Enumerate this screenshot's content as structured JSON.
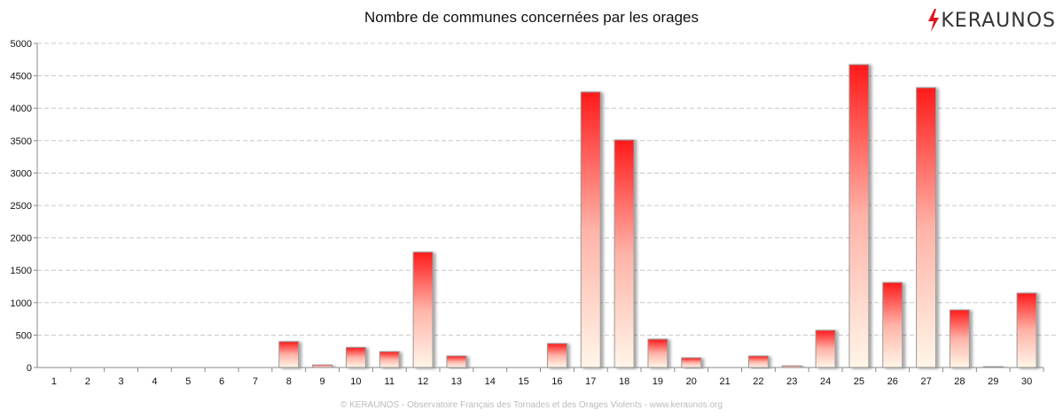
{
  "chart_data": {
    "type": "bar",
    "title": "Nombre de communes concernées par les orages",
    "xlabel": "",
    "ylabel": "",
    "ylim": [
      0,
      5000
    ],
    "yticks": [
      0,
      500,
      1000,
      1500,
      2000,
      2500,
      3000,
      3500,
      4000,
      4500,
      5000
    ],
    "grid": true,
    "categories": [
      "1",
      "2",
      "3",
      "4",
      "5",
      "6",
      "7",
      "8",
      "9",
      "10",
      "11",
      "12",
      "13",
      "14",
      "15",
      "16",
      "17",
      "18",
      "19",
      "20",
      "21",
      "22",
      "23",
      "24",
      "25",
      "26",
      "27",
      "28",
      "29",
      "30"
    ],
    "values": [
      3,
      3,
      3,
      3,
      3,
      3,
      3,
      400,
      40,
      310,
      245,
      1780,
      178,
      3,
      3,
      370,
      4250,
      3510,
      437,
      150,
      3,
      178,
      27,
      574,
      4672,
      1311,
      4317,
      888,
      14,
      1148
    ]
  },
  "logo": {
    "text": "KERAUNOS"
  },
  "footer": "© KERAUNOS - Observatoire Français des Tornades et des Orages Violents - www.keraunos.org",
  "colors": {
    "bar_top": "#ff1a1a",
    "bar_bottom": "#fff6e8",
    "grid": "#c8c8c8"
  }
}
